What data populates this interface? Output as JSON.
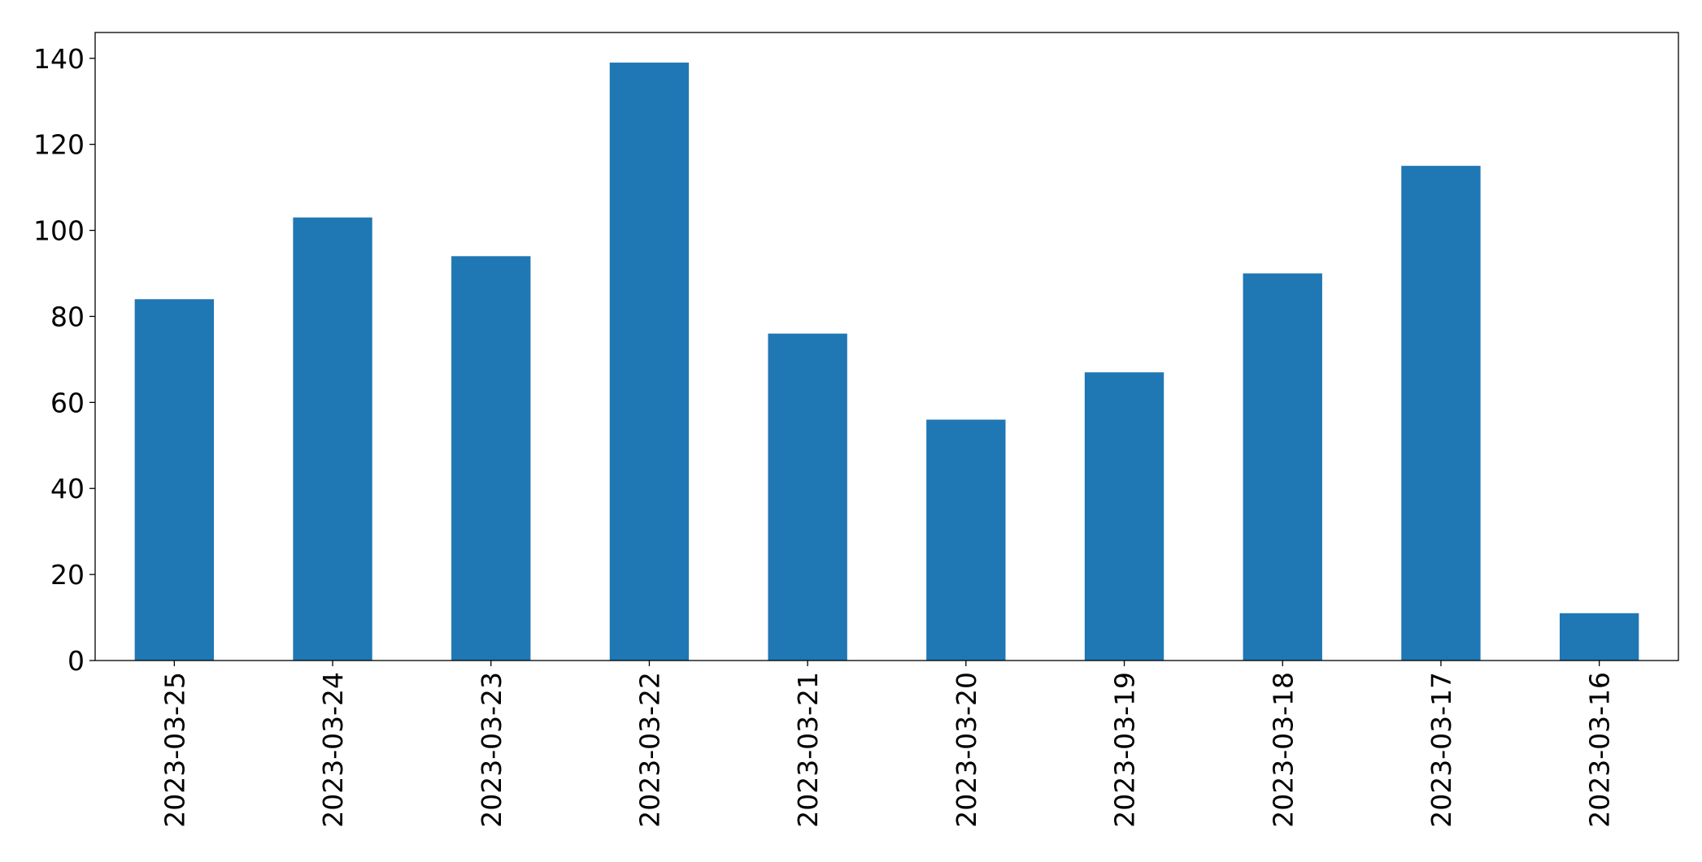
{
  "chart_data": {
    "type": "bar",
    "categories": [
      "2023-03-25",
      "2023-03-24",
      "2023-03-23",
      "2023-03-22",
      "2023-03-21",
      "2023-03-20",
      "2023-03-19",
      "2023-03-18",
      "2023-03-17",
      "2023-03-16"
    ],
    "values": [
      84,
      103,
      94,
      139,
      76,
      56,
      67,
      90,
      115,
      11
    ],
    "color": "#1f77b4",
    "ylim": [
      0,
      146
    ],
    "yticks": [
      0,
      20,
      40,
      60,
      80,
      100,
      120,
      140
    ],
    "grid": false
  }
}
